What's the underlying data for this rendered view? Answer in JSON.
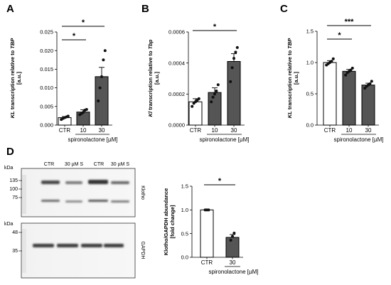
{
  "chart_data": [
    {
      "type": "bar",
      "panel_label": "A",
      "categories": [
        "CTR",
        "10",
        "30"
      ],
      "values": [
        0.002,
        0.0035,
        0.013
      ],
      "errors": [
        0.0003,
        0.0006,
        0.0025
      ],
      "points": [
        [
          0.0015,
          0.0018,
          0.002,
          0.0022,
          0.0024
        ],
        [
          0.0028,
          0.0031,
          0.0034,
          0.004,
          0.0042
        ],
        [
          0.0065,
          0.01,
          0.013,
          0.0175,
          0.02
        ]
      ],
      "ylabel_parts": [
        "KL",
        " transcription relative to ",
        "TBP"
      ],
      "ylabel_unit": "[a.u.]",
      "yticks": [
        "0.000",
        "0.005",
        "0.010",
        "0.015",
        "0.020",
        "0.025"
      ],
      "ylim": [
        0,
        0.025
      ],
      "xlabel": "spironolactone [µM]",
      "significance": [
        {
          "from": "CTR",
          "to": "10",
          "label": "*"
        },
        {
          "from": "CTR",
          "to": "30",
          "label": "*"
        }
      ]
    },
    {
      "type": "bar",
      "panel_label": "B",
      "categories": [
        "CTR",
        "10",
        "30"
      ],
      "values": [
        0.00015,
        0.00021,
        0.00041
      ],
      "errors": [
        2e-05,
        3e-05,
        5e-05
      ],
      "points": [
        [
          0.00012,
          0.00014,
          0.00015,
          0.00016,
          0.00017
        ],
        [
          0.00015,
          0.00018,
          0.0002,
          0.00022,
          0.00026
        ],
        [
          0.00028,
          0.00037,
          0.00043,
          0.00047,
          0.0005
        ]
      ],
      "ylabel_parts": [
        "Kl",
        " transcription relative to ",
        "Tbp"
      ],
      "ylabel_unit": "[a.u.]",
      "yticks": [
        "0.0000",
        "0.0002",
        "0.0004",
        "0.0006"
      ],
      "ylim": [
        0,
        0.0006
      ],
      "xlabel": "spironolactone [µM]",
      "significance": [
        {
          "from": "CTR",
          "to": "30",
          "label": "*"
        }
      ]
    },
    {
      "type": "bar",
      "panel_label": "C",
      "categories": [
        "CTR",
        "10",
        "30"
      ],
      "values": [
        1.0,
        0.86,
        0.64
      ],
      "errors": [
        0.03,
        0.03,
        0.03
      ],
      "points": [
        [
          0.96,
          0.98,
          1.0,
          1.02,
          1.06
        ],
        [
          0.8,
          0.84,
          0.86,
          0.88,
          0.91
        ],
        [
          0.59,
          0.62,
          0.64,
          0.66,
          0.7
        ]
      ],
      "ylabel_parts": [
        "KL",
        " transcription relative to ",
        "TBP"
      ],
      "ylabel_unit": "[a.u.]",
      "yticks": [
        "0.0",
        "0.5",
        "1.0",
        "1.5"
      ],
      "ylim": [
        0,
        1.5
      ],
      "xlabel": "spironolactone [µM]",
      "significance": [
        {
          "from": "CTR",
          "to": "10",
          "label": "*"
        },
        {
          "from": "CTR",
          "to": "30",
          "label": "***"
        }
      ]
    },
    {
      "type": "bar",
      "panel_label": "D",
      "categories": [
        "CTR",
        "30"
      ],
      "values": [
        1.0,
        0.42
      ],
      "errors": [
        0.005,
        0.06
      ],
      "points": [
        [
          1.0,
          1.0,
          1.0
        ],
        [
          0.36,
          0.44,
          0.51
        ]
      ],
      "ylabel_lines": [
        "Klotho/GAPDH abundance",
        "[fold change]"
      ],
      "yticks": [
        "0.0",
        "0.5",
        "1.0",
        "1.5"
      ],
      "ylim": [
        0,
        1.5
      ],
      "xlabel": "spironolactone [µM]",
      "significance": [
        {
          "from": "CTR",
          "to": "30",
          "label": "*"
        }
      ]
    }
  ],
  "blot": {
    "lane_labels": [
      "CTR",
      "30 µM S",
      "CTR",
      "30 µM S"
    ],
    "unit": "kDa",
    "top_markers": [
      "135",
      "100",
      "75"
    ],
    "bottom_markers": [
      "48",
      "35"
    ],
    "top_target": "Klotho",
    "bottom_target": "GAPDH"
  },
  "colors": {
    "ctr_bar": "#ffffff",
    "treated_bar": "#555555",
    "points": "#111111"
  }
}
